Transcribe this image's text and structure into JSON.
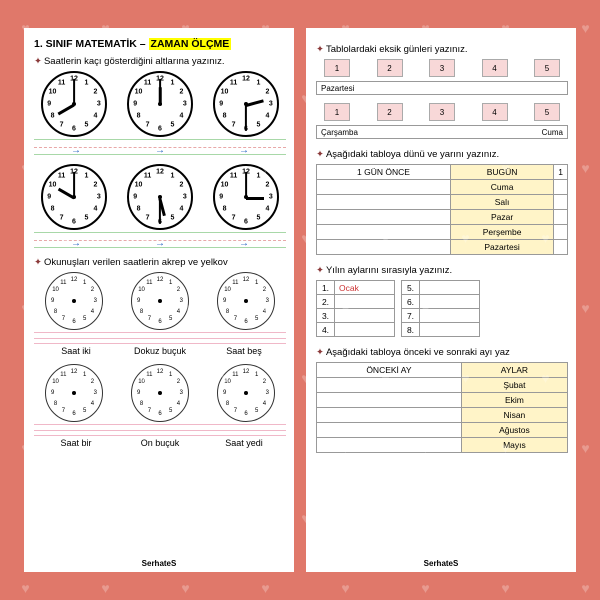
{
  "bg_color": "#e0786a",
  "left": {
    "title_a": "1. SINIF MATEMATİK – ",
    "title_b": "ZAMAN ÖLÇME",
    "instr1": "Saatlerin kaçı gösterdiğini altlarına yazınız.",
    "instr2": "Okunuşları verilen saatlerin akrep ve yelkov",
    "arrow": "→",
    "clocks1": [
      {
        "h": 8,
        "m": 0
      },
      {
        "h": 12,
        "m": 0
      },
      {
        "h": 2,
        "m": 30
      }
    ],
    "clocks2": [
      {
        "h": 10,
        "m": 0
      },
      {
        "h": 5,
        "m": 30
      },
      {
        "h": 3,
        "m": 0
      }
    ],
    "labels1": [
      "Saat iki",
      "Dokuz buçuk",
      "Saat beş"
    ],
    "labels2": [
      "Saat bir",
      "On buçuk",
      "Saat yedi"
    ]
  },
  "right": {
    "instr1": "Tablolardaki eksik günleri yazınız.",
    "row1_nums": [
      "1",
      "2",
      "3",
      "4",
      "5"
    ],
    "row1_label": "Pazartesi",
    "row2_nums": [
      "1",
      "2",
      "3",
      "4",
      "5"
    ],
    "row2_labels": [
      "Çarşamba",
      "Cuma"
    ],
    "instr2": "Aşağıdaki tabloya dünü ve yarını yazınız.",
    "tb1_heads": [
      "1 GÜN ÖNCE",
      "BUGÜN",
      "1"
    ],
    "tb1_rows": [
      "Cuma",
      "Salı",
      "Pazar",
      "Perşembe",
      "Pazartesi"
    ],
    "instr3": "Yılın aylarını sırasıyla yazınız.",
    "months_left": [
      [
        "1.",
        "Ocak"
      ],
      [
        "2.",
        ""
      ],
      [
        "3.",
        ""
      ],
      [
        "4.",
        ""
      ]
    ],
    "months_right": [
      [
        "5.",
        ""
      ],
      [
        "6.",
        ""
      ],
      [
        "7.",
        ""
      ],
      [
        "8.",
        ""
      ]
    ],
    "instr4": "Aşağıdaki tabloya önceki ve sonraki ayı yaz",
    "tb2_heads": [
      "ÖNCEKİ AY",
      "AYLAR"
    ],
    "tb2_rows": [
      "Şubat",
      "Ekim",
      "Nisan",
      "Ağustos",
      "Mayıs"
    ]
  },
  "footer": "SerhateS"
}
